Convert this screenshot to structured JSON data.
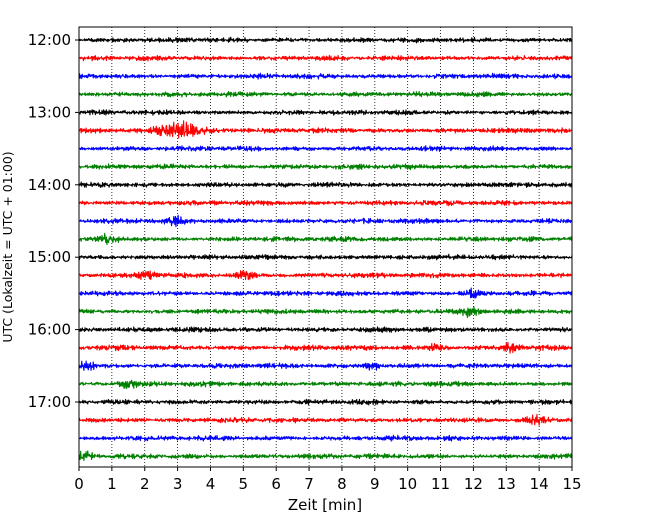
{
  "chart_data": {
    "type": "line",
    "title": "",
    "xlabel": "Zeit  [min]",
    "ylabel": "UTC (Lokalzeit = UTC + 01:00)",
    "xlim": [
      0,
      15
    ],
    "x_ticks": [
      "0",
      "1",
      "2",
      "3",
      "4",
      "5",
      "6",
      "7",
      "8",
      "9",
      "10",
      "11",
      "12",
      "13",
      "14",
      "15"
    ],
    "y_ticks": [
      "12:00",
      "13:00",
      "14:00",
      "15:00",
      "16:00",
      "17:00"
    ],
    "grid": "vertical dotted at each minute",
    "trace_minutes": 15,
    "trace_start": "12:00",
    "trace_end": "17:45",
    "trace_count": 24,
    "colors_cycle": [
      "#000000",
      "#ff0000",
      "#0000ff",
      "#008000"
    ],
    "events": [
      {
        "trace_start": "13:15",
        "minute": 3.0,
        "note": "strong"
      },
      {
        "trace_start": "14:30",
        "minute": 2.9
      },
      {
        "trace_start": "14:45",
        "minute": 0.9
      },
      {
        "trace_start": "15:15",
        "minute": 2.1
      },
      {
        "trace_start": "15:15",
        "minute": 5.1
      },
      {
        "trace_start": "15:30",
        "minute": 12.0
      },
      {
        "trace_start": "15:45",
        "minute": 11.9
      },
      {
        "trace_start": "16:15",
        "minute": 13.1
      },
      {
        "trace_start": "16:15",
        "minute": 10.9
      },
      {
        "trace_start": "16:30",
        "minute": 0.2
      },
      {
        "trace_start": "16:30",
        "minute": 8.9
      },
      {
        "trace_start": "16:45",
        "minute": 1.5
      },
      {
        "trace_start": "17:15",
        "minute": 13.9
      },
      {
        "trace_start": "17:45",
        "minute": 0.2
      }
    ]
  }
}
